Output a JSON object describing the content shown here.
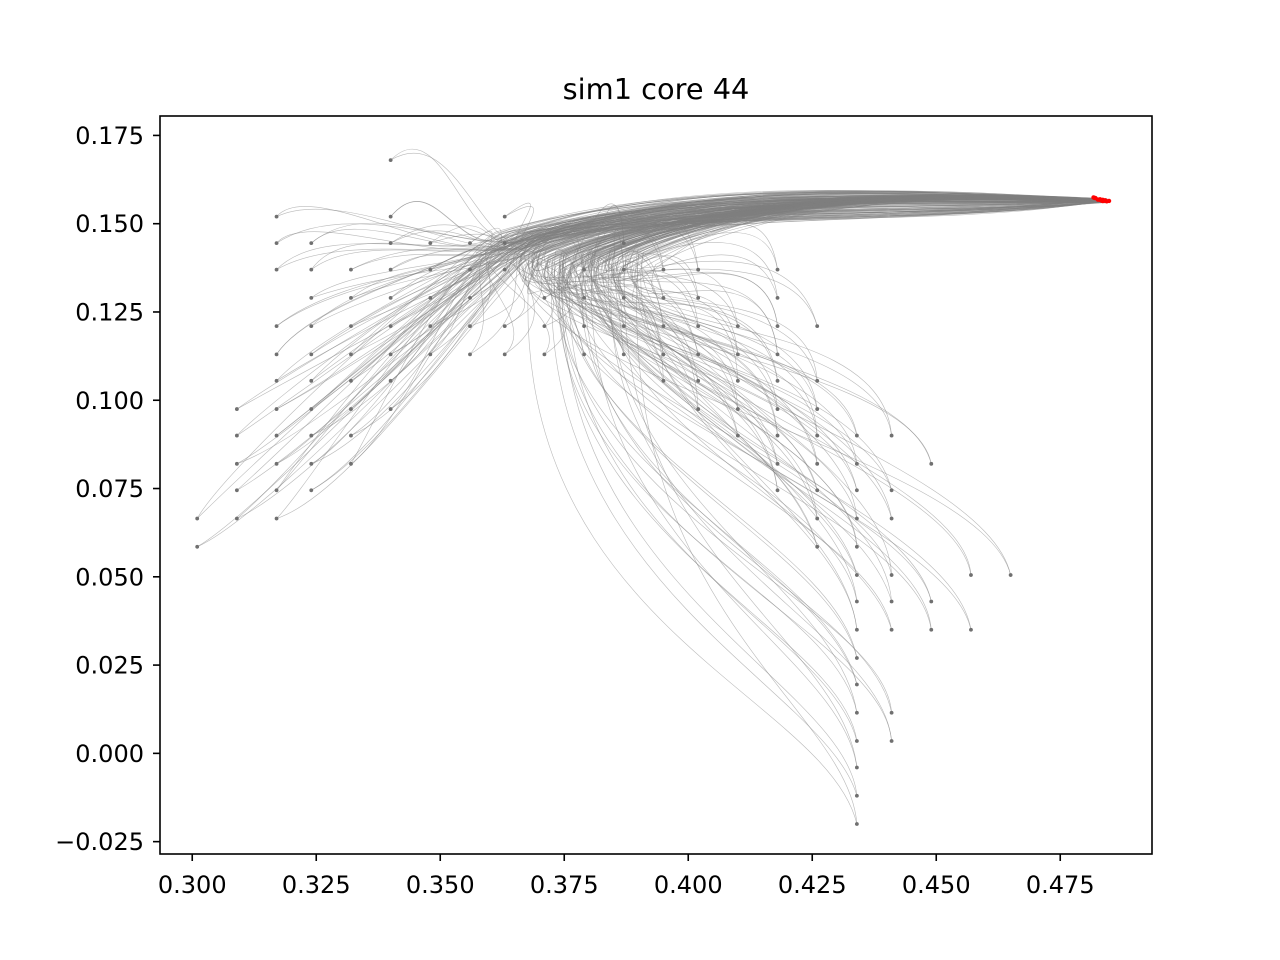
{
  "chart_data": {
    "type": "line",
    "title": "sim1 core 44",
    "xlabel": "",
    "ylabel": "",
    "xlim": [
      0.2935,
      0.4935
    ],
    "ylim": [
      -0.0285,
      0.1805
    ],
    "xticks": [
      0.3,
      0.325,
      0.35,
      0.375,
      0.4,
      0.425,
      0.45,
      0.475
    ],
    "xtick_labels": [
      "0.300",
      "0.325",
      "0.350",
      "0.375",
      "0.400",
      "0.425",
      "0.450",
      "0.475"
    ],
    "yticks": [
      -0.025,
      0.0,
      0.025,
      0.05,
      0.075,
      0.1,
      0.125,
      0.15,
      0.175
    ],
    "ytick_labels": [
      "−0.025",
      "0.000",
      "0.025",
      "0.050",
      "0.075",
      "0.100",
      "0.125",
      "0.150",
      "0.175"
    ],
    "grid": false,
    "legend": "none",
    "colors": {
      "trajectory": "#808080",
      "endpoint": "#ff0000"
    },
    "target": [
      0.483,
      0.1565
    ],
    "start_points": [
      [
        0.301,
        0.0665
      ],
      [
        0.301,
        0.0585
      ],
      [
        0.309,
        0.0975
      ],
      [
        0.309,
        0.09
      ],
      [
        0.309,
        0.082
      ],
      [
        0.309,
        0.0745
      ],
      [
        0.309,
        0.0665
      ],
      [
        0.317,
        0.152
      ],
      [
        0.317,
        0.1445
      ],
      [
        0.317,
        0.137
      ],
      [
        0.317,
        0.121
      ],
      [
        0.317,
        0.113
      ],
      [
        0.317,
        0.1055
      ],
      [
        0.317,
        0.0975
      ],
      [
        0.317,
        0.09
      ],
      [
        0.317,
        0.082
      ],
      [
        0.317,
        0.0745
      ],
      [
        0.317,
        0.0665
      ],
      [
        0.324,
        0.1445
      ],
      [
        0.324,
        0.137
      ],
      [
        0.324,
        0.129
      ],
      [
        0.324,
        0.121
      ],
      [
        0.324,
        0.113
      ],
      [
        0.324,
        0.1055
      ],
      [
        0.324,
        0.0975
      ],
      [
        0.324,
        0.09
      ],
      [
        0.324,
        0.082
      ],
      [
        0.324,
        0.0745
      ],
      [
        0.332,
        0.137
      ],
      [
        0.332,
        0.129
      ],
      [
        0.332,
        0.121
      ],
      [
        0.332,
        0.113
      ],
      [
        0.332,
        0.1055
      ],
      [
        0.332,
        0.0975
      ],
      [
        0.332,
        0.09
      ],
      [
        0.332,
        0.082
      ],
      [
        0.34,
        0.168
      ],
      [
        0.34,
        0.152
      ],
      [
        0.34,
        0.1445
      ],
      [
        0.34,
        0.137
      ],
      [
        0.34,
        0.129
      ],
      [
        0.34,
        0.121
      ],
      [
        0.34,
        0.113
      ],
      [
        0.34,
        0.1055
      ],
      [
        0.34,
        0.0975
      ],
      [
        0.348,
        0.1445
      ],
      [
        0.348,
        0.137
      ],
      [
        0.348,
        0.129
      ],
      [
        0.348,
        0.121
      ],
      [
        0.348,
        0.113
      ],
      [
        0.356,
        0.1445
      ],
      [
        0.356,
        0.137
      ],
      [
        0.356,
        0.129
      ],
      [
        0.356,
        0.121
      ],
      [
        0.356,
        0.113
      ],
      [
        0.363,
        0.152
      ],
      [
        0.363,
        0.1445
      ],
      [
        0.363,
        0.137
      ],
      [
        0.363,
        0.121
      ],
      [
        0.363,
        0.113
      ],
      [
        0.371,
        0.129
      ],
      [
        0.371,
        0.121
      ],
      [
        0.371,
        0.113
      ],
      [
        0.379,
        0.137
      ],
      [
        0.379,
        0.129
      ],
      [
        0.379,
        0.121
      ],
      [
        0.379,
        0.113
      ],
      [
        0.387,
        0.1445
      ],
      [
        0.387,
        0.137
      ],
      [
        0.387,
        0.129
      ],
      [
        0.387,
        0.121
      ],
      [
        0.387,
        0.113
      ],
      [
        0.395,
        0.137
      ],
      [
        0.395,
        0.129
      ],
      [
        0.395,
        0.121
      ],
      [
        0.395,
        0.113
      ],
      [
        0.395,
        0.1055
      ],
      [
        0.402,
        0.137
      ],
      [
        0.402,
        0.129
      ],
      [
        0.402,
        0.121
      ],
      [
        0.402,
        0.113
      ],
      [
        0.402,
        0.1055
      ],
      [
        0.402,
        0.0975
      ],
      [
        0.41,
        0.121
      ],
      [
        0.41,
        0.113
      ],
      [
        0.41,
        0.1055
      ],
      [
        0.41,
        0.0975
      ],
      [
        0.41,
        0.09
      ],
      [
        0.418,
        0.137
      ],
      [
        0.418,
        0.129
      ],
      [
        0.418,
        0.121
      ],
      [
        0.418,
        0.113
      ],
      [
        0.418,
        0.1055
      ],
      [
        0.418,
        0.0975
      ],
      [
        0.418,
        0.09
      ],
      [
        0.418,
        0.082
      ],
      [
        0.418,
        0.0745
      ],
      [
        0.426,
        0.121
      ],
      [
        0.426,
        0.1055
      ],
      [
        0.426,
        0.0975
      ],
      [
        0.426,
        0.09
      ],
      [
        0.426,
        0.082
      ],
      [
        0.426,
        0.0745
      ],
      [
        0.426,
        0.0665
      ],
      [
        0.426,
        0.0585
      ],
      [
        0.434,
        0.09
      ],
      [
        0.434,
        0.082
      ],
      [
        0.434,
        0.0745
      ],
      [
        0.434,
        0.0665
      ],
      [
        0.434,
        0.0585
      ],
      [
        0.434,
        0.0505
      ],
      [
        0.434,
        0.043
      ],
      [
        0.434,
        0.035
      ],
      [
        0.434,
        0.027
      ],
      [
        0.434,
        0.0195
      ],
      [
        0.434,
        0.0115
      ],
      [
        0.434,
        0.0035
      ],
      [
        0.434,
        -0.004
      ],
      [
        0.434,
        -0.012
      ],
      [
        0.434,
        -0.02
      ],
      [
        0.441,
        0.09
      ],
      [
        0.441,
        0.0745
      ],
      [
        0.441,
        0.0665
      ],
      [
        0.441,
        0.0505
      ],
      [
        0.441,
        0.043
      ],
      [
        0.441,
        0.035
      ],
      [
        0.441,
        0.0115
      ],
      [
        0.441,
        0.0035
      ],
      [
        0.449,
        0.082
      ],
      [
        0.449,
        0.043
      ],
      [
        0.449,
        0.035
      ],
      [
        0.457,
        0.0505
      ],
      [
        0.457,
        0.035
      ],
      [
        0.465,
        0.0505
      ]
    ]
  }
}
